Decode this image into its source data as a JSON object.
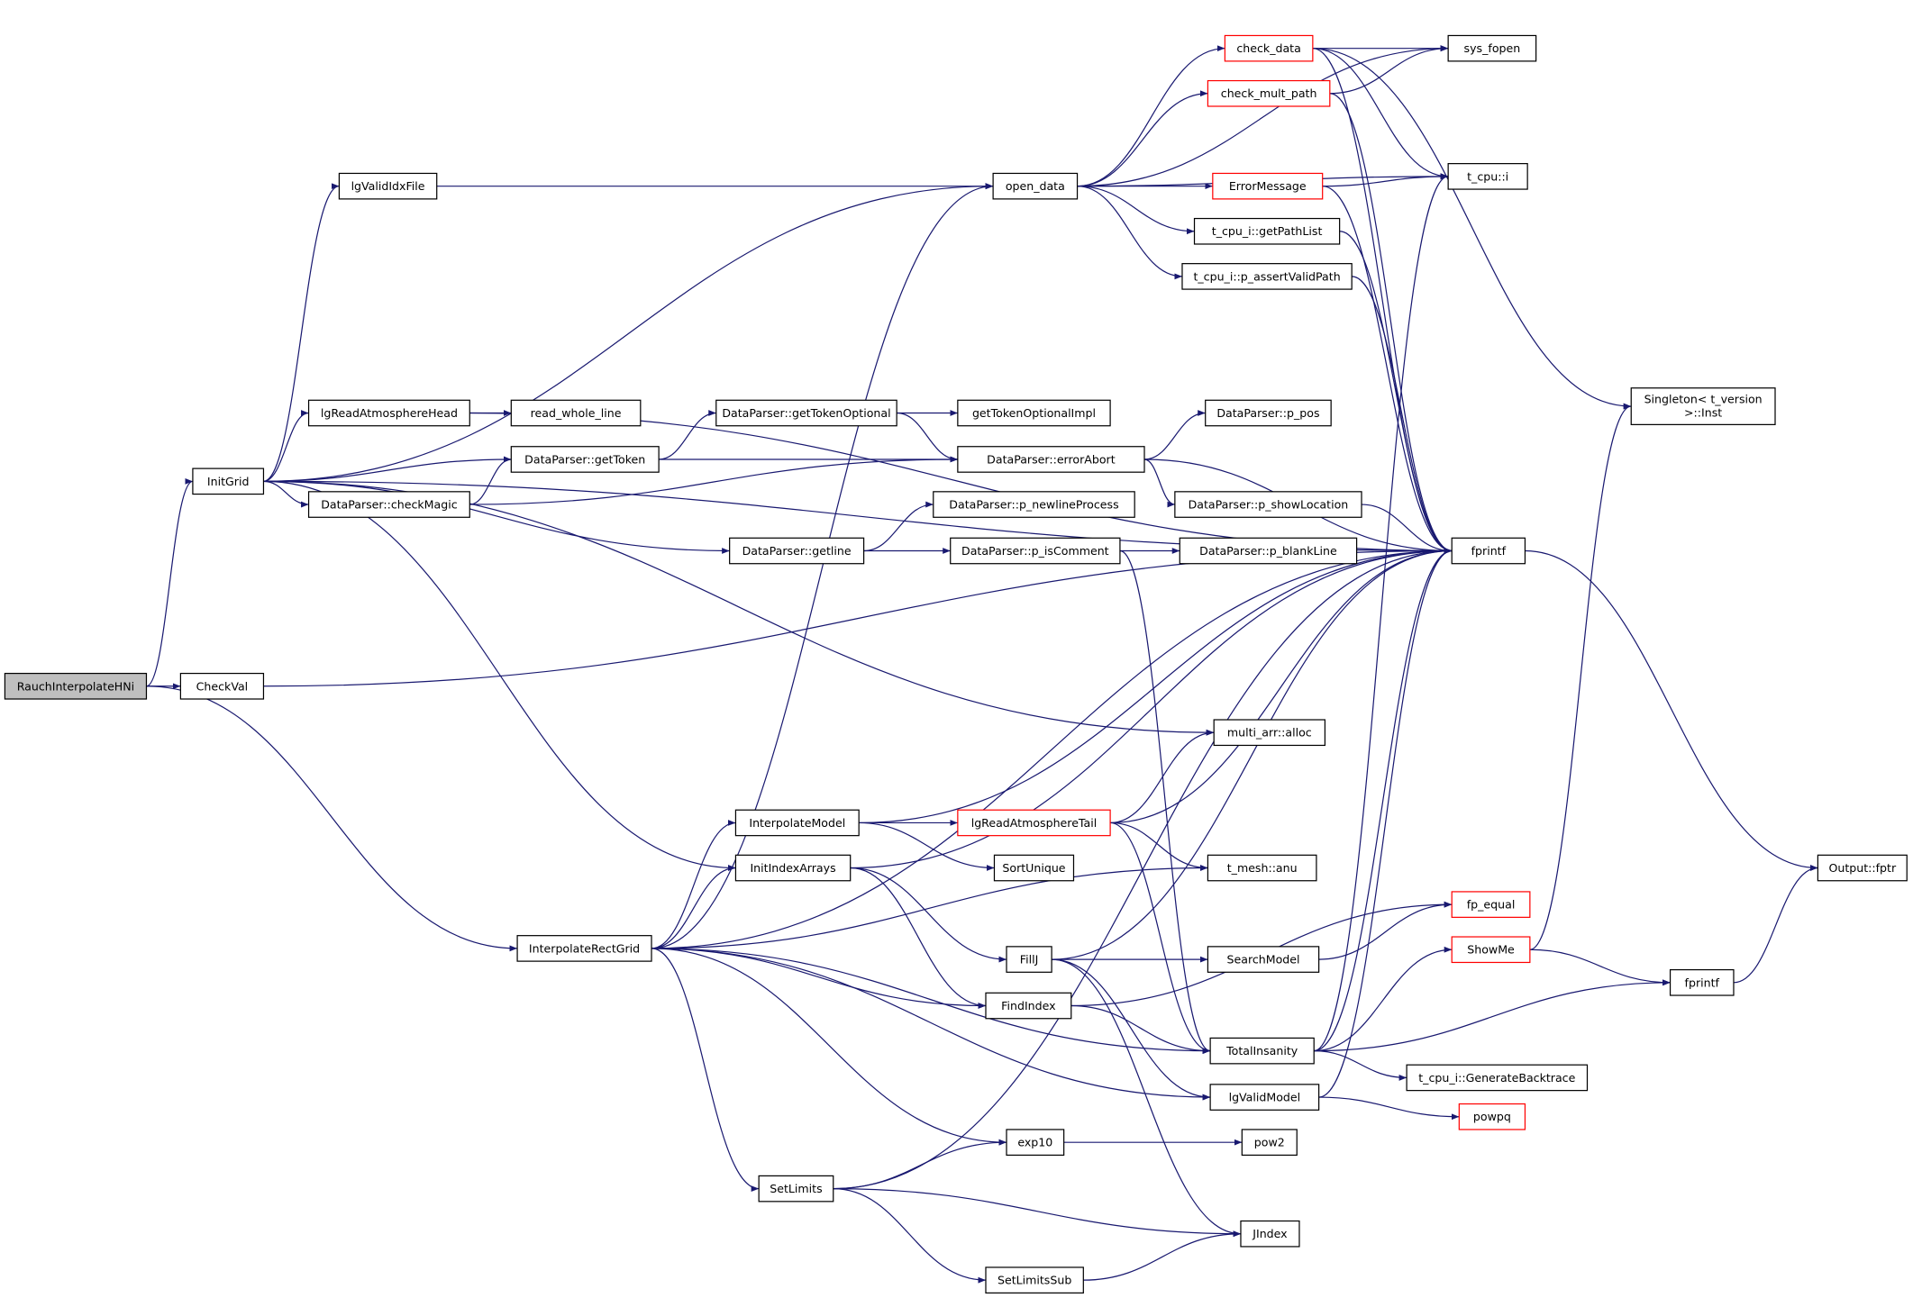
{
  "diagram": {
    "type": "call-graph",
    "colors": {
      "edge": "#191970",
      "root_fill": "#bfbfbf",
      "node_border": "#000000",
      "truncated_border": "#ff0000"
    },
    "nodes": [
      {
        "id": "rauch",
        "label": "RauchInterpolateHNi",
        "root": true
      },
      {
        "id": "checkval",
        "label": "CheckVal"
      },
      {
        "id": "initgrid",
        "label": "InitGrid"
      },
      {
        "id": "irg",
        "label": "InterpolateRectGrid"
      },
      {
        "id": "lgvalididx",
        "label": "lgValidIdxFile"
      },
      {
        "id": "lgrah",
        "label": "lgReadAtmosphereHead"
      },
      {
        "id": "rwl",
        "label": "read_whole_line"
      },
      {
        "id": "gettoken",
        "label": "DataParser::getToken"
      },
      {
        "id": "checkmagic",
        "label": "DataParser::checkMagic"
      },
      {
        "id": "gto",
        "label": "DataParser::getTokenOptional"
      },
      {
        "id": "gtoi",
        "label": "getTokenOptionalImpl"
      },
      {
        "id": "errabort",
        "label": "DataParser::errorAbort"
      },
      {
        "id": "ppos",
        "label": "DataParser::p_pos"
      },
      {
        "id": "pshow",
        "label": "DataParser::p_showLocation"
      },
      {
        "id": "pnl",
        "label": "DataParser::p_newlineProcess"
      },
      {
        "id": "getline",
        "label": "DataParser::getline"
      },
      {
        "id": "piscomment",
        "label": "DataParser::p_isComment"
      },
      {
        "id": "pblank",
        "label": "DataParser::p_blankLine"
      },
      {
        "id": "opendata",
        "label": "open_data"
      },
      {
        "id": "checkdata",
        "label": "check_data",
        "truncated": true
      },
      {
        "id": "checkmult",
        "label": "check_mult_path",
        "truncated": true
      },
      {
        "id": "sysfopen",
        "label": "sys_fopen"
      },
      {
        "id": "errmsg",
        "label": "ErrorMessage",
        "truncated": true
      },
      {
        "id": "tcpui",
        "label": "t_cpu::i"
      },
      {
        "id": "getpathlist",
        "label": "t_cpu_i::getPathList"
      },
      {
        "id": "assertpath",
        "label": "t_cpu_i::p_assertValidPath"
      },
      {
        "id": "fprintf",
        "label": "fprintf"
      },
      {
        "id": "singleton",
        "label": "Singleton< t_version",
        "label2": ">::Inst"
      },
      {
        "id": "fptr",
        "label": "Output::fptr"
      },
      {
        "id": "alloc",
        "label": "multi_arr::alloc"
      },
      {
        "id": "interpmodel",
        "label": "InterpolateModel"
      },
      {
        "id": "lgrat",
        "label": "lgReadAtmosphereTail",
        "truncated": true
      },
      {
        "id": "sortunique",
        "label": "SortUnique"
      },
      {
        "id": "initidx",
        "label": "InitIndexArrays"
      },
      {
        "id": "anu",
        "label": "t_mesh::anu"
      },
      {
        "id": "fillj",
        "label": "FillJ"
      },
      {
        "id": "findindex",
        "label": "FindIndex"
      },
      {
        "id": "searchmodel",
        "label": "SearchModel"
      },
      {
        "id": "fpequal",
        "label": "fp_equal",
        "truncated": true
      },
      {
        "id": "showme",
        "label": "ShowMe",
        "truncated": true
      },
      {
        "id": "fprintf2",
        "label": "fprintf"
      },
      {
        "id": "totalins",
        "label": "TotalInsanity"
      },
      {
        "id": "backtrace",
        "label": "t_cpu_i::GenerateBacktrace"
      },
      {
        "id": "lgvalidmodel",
        "label": "lgValidModel"
      },
      {
        "id": "powpq",
        "label": "powpq",
        "truncated": true
      },
      {
        "id": "exp10",
        "label": "exp10"
      },
      {
        "id": "pow2",
        "label": "pow2"
      },
      {
        "id": "setlimits",
        "label": "SetLimits"
      },
      {
        "id": "jindex",
        "label": "JIndex"
      },
      {
        "id": "setlimitssub",
        "label": "SetLimitsSub"
      }
    ],
    "edges": [
      [
        "rauch",
        "initgrid"
      ],
      [
        "rauch",
        "checkval"
      ],
      [
        "rauch",
        "irg"
      ],
      [
        "checkval",
        "fprintf"
      ],
      [
        "initgrid",
        "lgvalididx"
      ],
      [
        "initgrid",
        "opendata"
      ],
      [
        "initgrid",
        "fprintf"
      ],
      [
        "initgrid",
        "lgrah"
      ],
      [
        "initgrid",
        "gettoken"
      ],
      [
        "initgrid",
        "checkmagic"
      ],
      [
        "initgrid",
        "getline"
      ],
      [
        "initgrid",
        "alloc"
      ],
      [
        "initgrid",
        "initidx"
      ],
      [
        "lgvalididx",
        "opendata"
      ],
      [
        "lgrah",
        "rwl"
      ],
      [
        "lgrah",
        "fprintf"
      ],
      [
        "gettoken",
        "gto"
      ],
      [
        "gettoken",
        "errabort"
      ],
      [
        "checkmagic",
        "gettoken"
      ],
      [
        "checkmagic",
        "errabort"
      ],
      [
        "gto",
        "gtoi"
      ],
      [
        "gto",
        "errabort"
      ],
      [
        "errabort",
        "ppos"
      ],
      [
        "errabort",
        "pshow"
      ],
      [
        "errabort",
        "fprintf"
      ],
      [
        "pshow",
        "fprintf"
      ],
      [
        "getline",
        "pnl"
      ],
      [
        "getline",
        "piscomment"
      ],
      [
        "piscomment",
        "pblank"
      ],
      [
        "piscomment",
        "totalins"
      ],
      [
        "opendata",
        "sysfopen"
      ],
      [
        "opendata",
        "checkdata"
      ],
      [
        "opendata",
        "checkmult"
      ],
      [
        "opendata",
        "tcpui"
      ],
      [
        "opendata",
        "errmsg"
      ],
      [
        "opendata",
        "getpathlist"
      ],
      [
        "opendata",
        "assertpath"
      ],
      [
        "checkdata",
        "sysfopen"
      ],
      [
        "checkdata",
        "tcpui"
      ],
      [
        "checkdata",
        "singleton"
      ],
      [
        "checkdata",
        "fprintf"
      ],
      [
        "checkmult",
        "sysfopen"
      ],
      [
        "checkmult",
        "fprintf"
      ],
      [
        "errmsg",
        "tcpui"
      ],
      [
        "errmsg",
        "fprintf"
      ],
      [
        "getpathlist",
        "fprintf"
      ],
      [
        "assertpath",
        "fprintf"
      ],
      [
        "fprintf",
        "fptr"
      ],
      [
        "irg",
        "opendata"
      ],
      [
        "irg",
        "fprintf"
      ],
      [
        "irg",
        "interpmodel"
      ],
      [
        "irg",
        "initidx"
      ],
      [
        "irg",
        "anu"
      ],
      [
        "irg",
        "findindex"
      ],
      [
        "irg",
        "totalins"
      ],
      [
        "irg",
        "lgvalidmodel"
      ],
      [
        "irg",
        "exp10"
      ],
      [
        "irg",
        "setlimits"
      ],
      [
        "interpmodel",
        "fprintf"
      ],
      [
        "interpmodel",
        "lgrat"
      ],
      [
        "interpmodel",
        "sortunique"
      ],
      [
        "initidx",
        "fprintf"
      ],
      [
        "initidx",
        "fillj"
      ],
      [
        "initidx",
        "findindex"
      ],
      [
        "lgrat",
        "alloc"
      ],
      [
        "lgrat",
        "fprintf"
      ],
      [
        "lgrat",
        "anu"
      ],
      [
        "lgrat",
        "totalins"
      ],
      [
        "fillj",
        "fprintf"
      ],
      [
        "fillj",
        "searchmodel"
      ],
      [
        "fillj",
        "lgvalidmodel"
      ],
      [
        "fillj",
        "jindex"
      ],
      [
        "findindex",
        "fpequal"
      ],
      [
        "findindex",
        "totalins"
      ],
      [
        "searchmodel",
        "fpequal"
      ],
      [
        "totalins",
        "tcpui"
      ],
      [
        "totalins",
        "showme"
      ],
      [
        "totalins",
        "fprintf2"
      ],
      [
        "totalins",
        "backtrace"
      ],
      [
        "totalins",
        "fprintf"
      ],
      [
        "showme",
        "singleton"
      ],
      [
        "showme",
        "fprintf2"
      ],
      [
        "fprintf2",
        "fptr"
      ],
      [
        "lgvalidmodel",
        "fprintf"
      ],
      [
        "lgvalidmodel",
        "powpq"
      ],
      [
        "exp10",
        "pow2"
      ],
      [
        "setlimits",
        "exp10"
      ],
      [
        "setlimits",
        "fprintf"
      ],
      [
        "setlimits",
        "jindex"
      ],
      [
        "setlimits",
        "setlimitssub"
      ],
      [
        "setlimitssub",
        "jindex"
      ]
    ]
  }
}
